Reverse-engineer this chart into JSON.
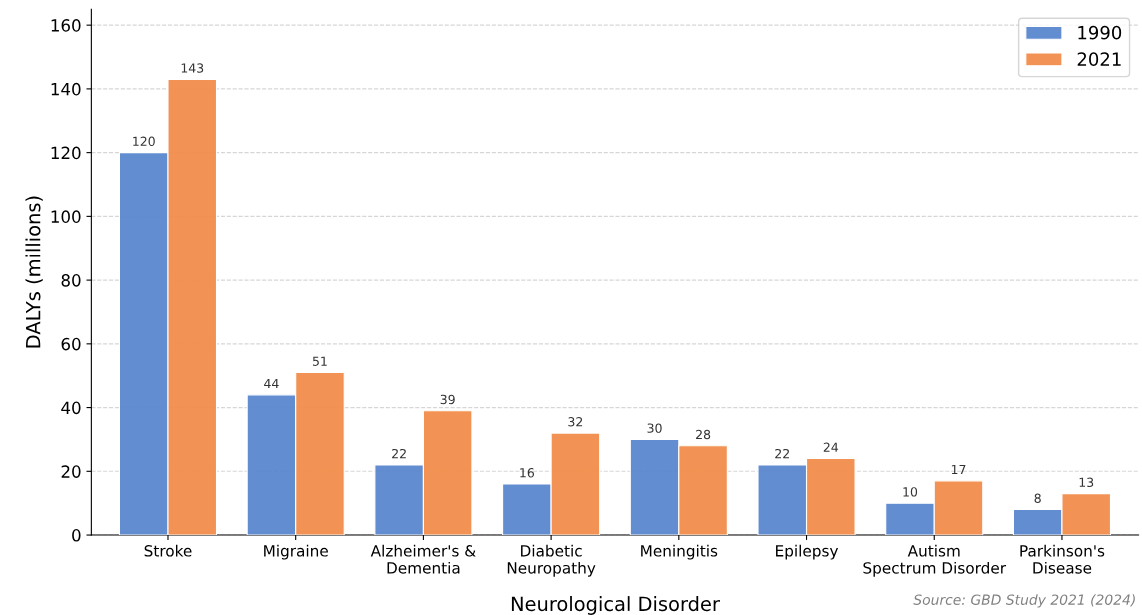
{
  "chart_data": {
    "type": "bar",
    "xlabel": "Neurological Disorder",
    "ylabel": "DALYs (millions)",
    "categories": [
      "Stroke",
      "Migraine",
      "Alzheimer's &\nDementia",
      "Diabetic\nNeuropathy",
      "Meningitis",
      "Epilepsy",
      "Autism\nSpectrum Disorder",
      "Parkinson's\nDisease"
    ],
    "series": [
      {
        "name": "1990",
        "color": "#5b87cf",
        "values": [
          120,
          44,
          22,
          16,
          30,
          22,
          10,
          8
        ]
      },
      {
        "name": "2021",
        "color": "#f28e4c",
        "values": [
          143,
          51,
          39,
          32,
          28,
          24,
          17,
          13
        ]
      }
    ],
    "ylim": [
      0,
      165
    ],
    "yticks": [
      0,
      20,
      40,
      60,
      80,
      100,
      120,
      140,
      160
    ],
    "grid": "y",
    "legend": "top right",
    "data_labels": true,
    "annotations": [
      "Source: GBD Study 2021 (2024)"
    ]
  }
}
